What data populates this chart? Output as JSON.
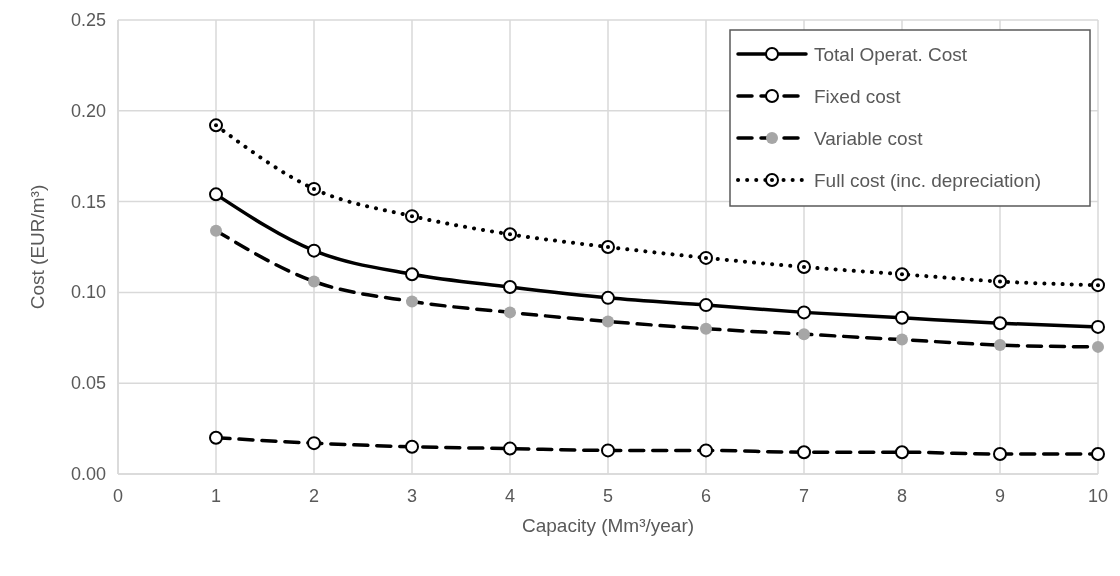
{
  "chart_data": {
    "type": "line",
    "xlabel": "Capacity (Mm³/year)",
    "ylabel": "Cost (EUR/m³)",
    "x": [
      1,
      2,
      3,
      4,
      5,
      6,
      7,
      8,
      9,
      10
    ],
    "series": [
      {
        "name": "Total Operat. Cost",
        "color": "#000000",
        "line_style": "solid",
        "values": [
          0.154,
          0.123,
          0.11,
          0.103,
          0.097,
          0.093,
          0.089,
          0.086,
          0.083,
          0.081
        ]
      },
      {
        "name": "Fixed cost",
        "color": "#000000",
        "line_style": "dashed",
        "values": [
          0.02,
          0.017,
          0.015,
          0.014,
          0.013,
          0.013,
          0.012,
          0.012,
          0.011,
          0.011
        ]
      },
      {
        "name": "Variable cost",
        "color": "#000000",
        "line_style": "dashed",
        "values": [
          0.134,
          0.106,
          0.095,
          0.089,
          0.084,
          0.08,
          0.077,
          0.074,
          0.071,
          0.07
        ]
      },
      {
        "name": "Full cost (inc. depreciation)",
        "color": "#000000",
        "line_style": "dotted",
        "values": [
          0.192,
          0.157,
          0.142,
          0.132,
          0.125,
          0.119,
          0.114,
          0.11,
          0.106,
          0.104
        ]
      }
    ],
    "marker": "circle",
    "xlim": [
      0,
      10
    ],
    "xticks": [
      0,
      1,
      2,
      3,
      4,
      5,
      6,
      7,
      8,
      9,
      10
    ],
    "ylim": [
      0,
      0.25
    ],
    "yticks": [
      {
        "value": 0,
        "label": "0.00"
      },
      {
        "value": 0.05,
        "label": "0.05"
      },
      {
        "value": 0.1,
        "label": "0.10"
      },
      {
        "value": 0.15,
        "label": "0.15"
      },
      {
        "value": 0.2,
        "label": "0.20"
      },
      {
        "value": 0.25,
        "label": "0.25"
      }
    ],
    "grid": true,
    "legend": "top right"
  }
}
